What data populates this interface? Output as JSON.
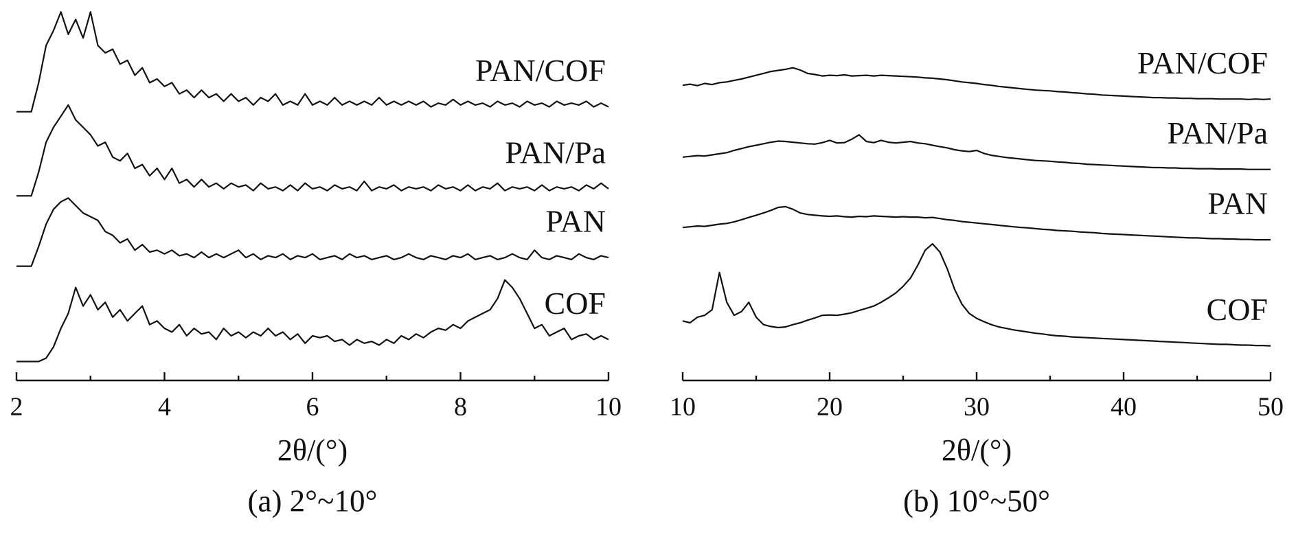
{
  "chart_data": [
    {
      "type": "line",
      "xlabel": "2θ/(°)",
      "caption": "(a) 2°~10°",
      "x": [
        2.0,
        2.1,
        2.2,
        2.3,
        2.4,
        2.5,
        2.6,
        2.7,
        2.8,
        2.9,
        3.0,
        3.1,
        3.2,
        3.3,
        3.4,
        3.5,
        3.6,
        3.7,
        3.8,
        3.9,
        4.0,
        4.1,
        4.2,
        4.3,
        4.4,
        4.5,
        4.6,
        4.7,
        4.8,
        4.9,
        5.0,
        5.1,
        5.2,
        5.3,
        5.4,
        5.5,
        5.6,
        5.7,
        5.8,
        5.9,
        6.0,
        6.1,
        6.2,
        6.3,
        6.4,
        6.5,
        6.6,
        6.7,
        6.8,
        6.9,
        7.0,
        7.1,
        7.2,
        7.3,
        7.4,
        7.5,
        7.6,
        7.7,
        7.8,
        7.9,
        8.0,
        8.1,
        8.2,
        8.3,
        8.4,
        8.5,
        8.6,
        8.7,
        8.8,
        8.9,
        9.0,
        9.1,
        9.2,
        9.3,
        9.4,
        9.5,
        9.6,
        9.7,
        9.8,
        9.9,
        10.0
      ],
      "xlim": [
        2,
        10
      ],
      "xticks": [
        2,
        4,
        6,
        8,
        10
      ],
      "xminorticks": [
        3,
        5,
        7,
        9
      ],
      "ylim": [
        0,
        100
      ],
      "series": [
        {
          "name": "PAN/COF",
          "color": "#111111",
          "values": [
            72.2,
            72.2,
            72.2,
            80,
            90,
            94,
            99,
            93,
            97,
            92,
            99,
            90,
            88,
            89,
            85,
            86,
            82,
            84,
            80,
            81,
            79,
            80,
            77,
            78,
            76,
            78,
            76,
            77,
            75,
            77,
            75,
            76,
            74,
            76,
            75,
            77,
            74,
            75,
            74,
            77,
            74,
            75,
            74,
            76,
            74,
            75,
            74,
            75,
            74,
            76,
            74,
            75,
            74,
            75,
            74,
            75,
            73.5,
            74.5,
            74,
            75.5,
            74,
            75,
            74,
            74.5,
            73.5,
            75,
            74,
            74.5,
            73.5,
            75,
            74,
            74.5,
            73.5,
            75,
            74,
            74.5,
            74,
            75,
            73.5,
            74.5,
            73.5
          ]
        },
        {
          "name": "PAN/Pa",
          "color": "#111111",
          "values": [
            49.6,
            49.6,
            49.6,
            56,
            64,
            68,
            71,
            74,
            70,
            68,
            66,
            63,
            64,
            60,
            59,
            61,
            57,
            58,
            55,
            57,
            54,
            57,
            53,
            54,
            52,
            54,
            52,
            53,
            51.5,
            53,
            52,
            52.5,
            51,
            53,
            51.5,
            52,
            51,
            52.5,
            51,
            53,
            51.5,
            52,
            51,
            52.5,
            51.5,
            52,
            51,
            53.5,
            51,
            52,
            51.5,
            52.5,
            51,
            52,
            51.5,
            52,
            51,
            52.5,
            51.5,
            52,
            51,
            52.5,
            51,
            52,
            51.5,
            53,
            51,
            52,
            51.5,
            52,
            51,
            52.5,
            51,
            52,
            51.5,
            52,
            51,
            52.5,
            51.5,
            53,
            51.5
          ]
        },
        {
          "name": "PAN",
          "color": "#111111",
          "values": [
            30.7,
            30.7,
            30.7,
            36,
            42,
            46,
            48,
            49,
            47,
            45,
            44,
            43,
            40,
            39,
            37,
            38,
            35,
            36.5,
            34.5,
            35,
            34,
            35,
            33.5,
            34,
            33,
            34.5,
            33,
            34,
            33,
            34,
            35,
            33,
            34,
            32.5,
            33.5,
            33,
            34,
            32.5,
            33.5,
            33,
            34,
            32.5,
            33,
            33.5,
            32.5,
            34,
            33,
            33.5,
            32.5,
            33,
            33.5,
            32.5,
            33,
            34,
            33,
            32.5,
            33.5,
            33,
            32.5,
            33.5,
            33,
            34,
            32.5,
            33,
            33.5,
            32.5,
            33,
            34,
            33,
            32.5,
            35,
            33,
            32.5,
            33.5,
            33,
            32.5,
            34,
            33,
            32.5,
            33.5,
            33
          ]
        },
        {
          "name": "COF",
          "color": "#111111",
          "values": [
            5.1,
            5.1,
            5.1,
            5.1,
            6,
            9,
            14,
            18,
            25,
            20,
            23,
            19,
            21,
            17,
            19,
            16,
            18,
            20,
            15,
            16,
            14,
            13,
            15,
            12,
            14,
            12.5,
            13,
            11,
            14,
            12,
            13,
            11.5,
            13,
            12,
            14,
            12,
            13,
            11,
            12.5,
            10,
            12,
            11.5,
            12,
            10.5,
            11,
            9.5,
            11,
            10,
            10.5,
            9.5,
            11,
            10,
            12,
            11,
            12.5,
            11.5,
            13,
            14,
            13.5,
            15,
            14,
            16,
            17,
            18,
            19,
            22,
            27,
            25,
            22,
            18,
            14,
            15,
            12,
            13,
            14,
            11,
            12,
            12.5,
            11,
            12,
            11
          ]
        }
      ]
    },
    {
      "type": "line",
      "xlabel": "2θ/(°)",
      "caption": "(b) 10°~50°",
      "x": [
        10,
        10.5,
        11,
        11.5,
        12,
        12.5,
        13,
        13.5,
        14,
        14.5,
        15,
        15.5,
        16,
        16.5,
        17,
        17.5,
        18,
        18.5,
        19,
        19.5,
        20,
        20.5,
        21,
        21.5,
        22,
        22.5,
        23,
        23.5,
        24,
        24.5,
        25,
        25.5,
        26,
        26.5,
        27,
        27.5,
        28,
        28.5,
        29,
        29.5,
        30,
        30.5,
        31,
        31.5,
        32,
        32.5,
        33,
        33.5,
        34,
        34.5,
        35,
        35.5,
        36,
        36.5,
        37,
        37.5,
        38,
        38.5,
        39,
        39.5,
        40,
        40.5,
        41,
        41.5,
        42,
        42.5,
        43,
        43.5,
        44,
        44.5,
        45,
        45.5,
        46,
        46.5,
        47,
        47.5,
        48,
        48.5,
        49,
        49.5,
        50
      ],
      "xlim": [
        10,
        50
      ],
      "xticks": [
        10,
        20,
        30,
        40,
        50
      ],
      "xminorticks": [
        15,
        25,
        35,
        45
      ],
      "ylim": [
        0,
        100
      ],
      "series": [
        {
          "name": "PAN/COF",
          "color": "#111111",
          "values": [
            79.3,
            79.6,
            79.2,
            79.8,
            79.5,
            80,
            80.2,
            80.6,
            81,
            81.5,
            82,
            82.5,
            83,
            83.3,
            83.6,
            84,
            83.4,
            82.5,
            82.2,
            81.8,
            82,
            81.9,
            82.1,
            81.8,
            81.9,
            82,
            81.8,
            82,
            81.9,
            81.8,
            81.7,
            81.6,
            81.5,
            81.3,
            81.2,
            81,
            80.8,
            80.5,
            80.2,
            80,
            79.8,
            79.5,
            79.3,
            79,
            78.8,
            78.6,
            78.4,
            78.2,
            78,
            77.9,
            77.8,
            77.6,
            77.5,
            77.3,
            77.2,
            77,
            76.9,
            76.7,
            76.6,
            76.5,
            76.4,
            76.3,
            76.2,
            76.1,
            76,
            76,
            75.9,
            75.9,
            75.8,
            75.8,
            75.7,
            75.7,
            75.7,
            75.6,
            75.6,
            75.6,
            75.6,
            75.5,
            75.6,
            75.5,
            75.6
          ]
        },
        {
          "name": "PAN/Pa",
          "color": "#111111",
          "values": [
            60,
            60.2,
            60.4,
            60.3,
            60.6,
            60.9,
            61.2,
            61.8,
            62.3,
            62.8,
            63.2,
            63.6,
            64,
            64.3,
            64.2,
            64,
            63.8,
            63.6,
            63.5,
            63.9,
            64.5,
            63.8,
            63.9,
            64.8,
            66,
            64.2,
            63.9,
            64.5,
            64,
            63.8,
            64,
            64.2,
            63.8,
            63.6,
            63.2,
            62.8,
            62.5,
            62,
            61.7,
            61.5,
            61.8,
            61,
            60.5,
            60.2,
            59.9,
            59.7,
            59.5,
            59.3,
            59.1,
            59,
            58.9,
            58.7,
            58.6,
            58.4,
            58.3,
            58.1,
            58,
            57.9,
            57.8,
            57.7,
            57.6,
            57.5,
            57.4,
            57.3,
            57.2,
            57.2,
            57.1,
            57.1,
            57,
            57,
            56.9,
            56.9,
            56.9,
            56.8,
            56.8,
            56.8,
            56.8,
            56.7,
            56.7,
            56.7,
            56.7
          ]
        },
        {
          "name": "PAN",
          "color": "#111111",
          "values": [
            41.1,
            41.3,
            41.5,
            41.4,
            41.7,
            42,
            42.2,
            42.6,
            43.2,
            43.8,
            44.4,
            45,
            45.7,
            46.5,
            46.7,
            46,
            45,
            44.6,
            44.4,
            44.2,
            44.1,
            44.2,
            44,
            43.9,
            44.1,
            44,
            44.2,
            44.1,
            44,
            43.9,
            44,
            43.9,
            43.9,
            43.7,
            43.8,
            43.5,
            43.2,
            43,
            42.7,
            42.5,
            42.3,
            42.1,
            41.9,
            41.7,
            41.5,
            41.3,
            41.1,
            41,
            40.8,
            40.6,
            40.5,
            40.3,
            40.2,
            40.1,
            39.9,
            39.8,
            39.7,
            39.5,
            39.4,
            39.3,
            39.2,
            39.1,
            39,
            38.9,
            38.8,
            38.7,
            38.6,
            38.5,
            38.4,
            38.3,
            38.3,
            38.2,
            38.1,
            38.1,
            38,
            38,
            37.9,
            37.9,
            37.8,
            37.8,
            37.8
          ]
        },
        {
          "name": "COF",
          "color": "#111111",
          "values": [
            16,
            15.5,
            17,
            17.5,
            19,
            29,
            21,
            17.5,
            18.5,
            21,
            17,
            15,
            14.5,
            14.2,
            14.4,
            15,
            15.5,
            16.2,
            16.8,
            17.5,
            17.6,
            17.5,
            17.8,
            18.2,
            18.8,
            19.4,
            20,
            21,
            22.2,
            23.5,
            25.3,
            27.5,
            31,
            35,
            36.7,
            34.5,
            30,
            24.5,
            20.5,
            18,
            16.7,
            15.8,
            15,
            14.4,
            14,
            13.6,
            13.3,
            13,
            12.7,
            12.5,
            12.2,
            12,
            11.9,
            11.7,
            11.6,
            11.5,
            11.4,
            11.3,
            11.2,
            11.1,
            11,
            10.9,
            10.8,
            10.7,
            10.6,
            10.5,
            10.4,
            10.3,
            10.2,
            10.1,
            10,
            9.9,
            9.8,
            9.7,
            9.7,
            9.6,
            9.5,
            9.5,
            9.4,
            9.4,
            9.3
          ]
        }
      ]
    }
  ]
}
